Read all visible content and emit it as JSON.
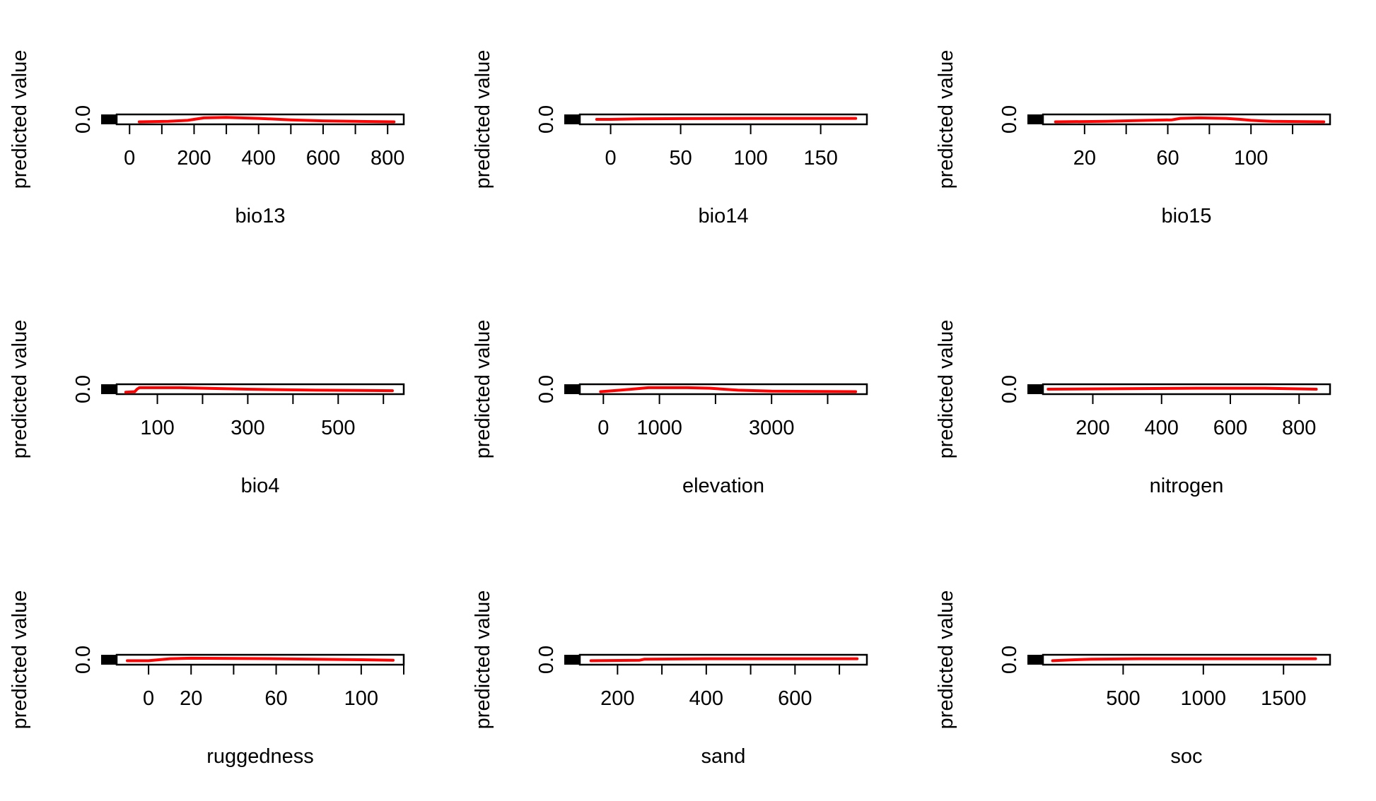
{
  "chart_data": [
    {
      "type": "line",
      "xlabel": "bio13",
      "ylabel": "predicted value",
      "ytick_label": "0.0",
      "xlim": [
        -40,
        850
      ],
      "ylim": [
        -0.1,
        0.1
      ],
      "xticks": [
        0,
        100,
        200,
        300,
        400,
        500,
        600,
        700,
        800
      ],
      "xtick_labels": [
        "0",
        "200",
        "400",
        "600",
        "800"
      ],
      "series": [
        {
          "color": "#ff0000",
          "x": [
            30,
            120,
            180,
            230,
            300,
            400,
            500,
            600,
            700,
            820
          ],
          "y": [
            -0.05,
            -0.04,
            -0.02,
            0.03,
            0.04,
            0.02,
            -0.01,
            -0.03,
            -0.04,
            -0.05
          ]
        }
      ]
    },
    {
      "type": "line",
      "xlabel": "bio14",
      "ylabel": "predicted value",
      "ytick_label": "0.0",
      "xlim": [
        -22,
        183
      ],
      "ylim": [
        -0.1,
        0.1
      ],
      "xticks": [
        0,
        50,
        100,
        150
      ],
      "xtick_labels": [
        "0",
        "50",
        "100",
        "150"
      ],
      "series": [
        {
          "color": "#ff0000",
          "x": [
            -10,
            0,
            20,
            50,
            100,
            150,
            175
          ],
          "y": [
            0.0,
            0.0,
            0.01,
            0.015,
            0.02,
            0.02,
            0.02
          ]
        }
      ]
    },
    {
      "type": "line",
      "xlabel": "bio15",
      "ylabel": "predicted value",
      "ytick_label": "0.0",
      "xlim": [
        0,
        138
      ],
      "ylim": [
        -0.1,
        0.1
      ],
      "xticks": [
        20,
        40,
        60,
        80,
        100,
        120
      ],
      "xtick_labels": [
        "20",
        "60",
        "100"
      ],
      "series": [
        {
          "color": "#ff0000",
          "x": [
            6,
            30,
            50,
            62,
            66,
            75,
            88,
            95,
            100,
            110,
            135
          ],
          "y": [
            -0.05,
            -0.04,
            -0.02,
            -0.01,
            0.02,
            0.03,
            0.02,
            0.0,
            -0.02,
            -0.04,
            -0.05
          ]
        }
      ]
    },
    {
      "type": "line",
      "xlabel": "bio4",
      "ylabel": "predicted value",
      "ytick_label": "0.0",
      "xlim": [
        10,
        645
      ],
      "ylim": [
        -0.1,
        0.1
      ],
      "xticks": [
        100,
        200,
        300,
        400,
        500,
        600
      ],
      "xtick_labels": [
        "100",
        "300",
        "500"
      ],
      "series": [
        {
          "color": "#ff0000",
          "x": [
            30,
            50,
            55,
            60,
            150,
            300,
            450,
            620
          ],
          "y": [
            -0.06,
            -0.05,
            0.0,
            0.03,
            0.03,
            0.0,
            -0.02,
            -0.03
          ]
        }
      ]
    },
    {
      "type": "line",
      "xlabel": "elevation",
      "ylabel": "predicted value",
      "ytick_label": "0.0",
      "xlim": [
        -420,
        4700
      ],
      "ylim": [
        -0.1,
        0.1
      ],
      "xticks": [
        0,
        1000,
        2000,
        3000,
        4000
      ],
      "xtick_labels": [
        "0",
        "1000",
        "3000"
      ],
      "series": [
        {
          "color": "#ff0000",
          "x": [
            -50,
            300,
            800,
            1500,
            1900,
            2400,
            3000,
            4500
          ],
          "y": [
            -0.05,
            -0.02,
            0.03,
            0.03,
            0.02,
            -0.02,
            -0.04,
            -0.05
          ]
        }
      ]
    },
    {
      "type": "line",
      "xlabel": "nitrogen",
      "ylabel": "predicted value",
      "ytick_label": "0.0",
      "xlim": [
        55,
        890
      ],
      "ylim": [
        -0.1,
        0.1
      ],
      "xticks": [
        200,
        400,
        600,
        800
      ],
      "xtick_labels": [
        "200",
        "400",
        "600",
        "800"
      ],
      "series": [
        {
          "color": "#ff0000",
          "x": [
            70,
            300,
            500,
            700,
            850
          ],
          "y": [
            0.0,
            0.01,
            0.02,
            0.02,
            0.0
          ]
        }
      ]
    },
    {
      "type": "line",
      "xlabel": "ruggedness",
      "ylabel": "predicted value",
      "ytick_label": "0.0",
      "xlim": [
        -15,
        120
      ],
      "ylim": [
        -0.1,
        0.1
      ],
      "xticks": [
        0,
        20,
        40,
        60,
        80,
        100,
        120
      ],
      "xtick_labels": [
        "0",
        "20",
        "60",
        "100"
      ],
      "series": [
        {
          "color": "#ff0000",
          "x": [
            -10,
            0,
            10,
            20,
            60,
            100,
            115
          ],
          "y": [
            -0.02,
            -0.02,
            0.02,
            0.03,
            0.02,
            0.0,
            -0.01
          ]
        }
      ]
    },
    {
      "type": "line",
      "xlabel": "sand",
      "ylabel": "predicted value",
      "ytick_label": "0.0",
      "xlim": [
        115,
        762
      ],
      "ylim": [
        -0.1,
        0.1
      ],
      "xticks": [
        200,
        300,
        400,
        500,
        600,
        700
      ],
      "xtick_labels": [
        "200",
        "400",
        "600"
      ],
      "series": [
        {
          "color": "#ff0000",
          "x": [
            140,
            250,
            260,
            400,
            600,
            740
          ],
          "y": [
            -0.02,
            -0.01,
            0.01,
            0.02,
            0.02,
            0.02
          ]
        }
      ]
    },
    {
      "type": "line",
      "xlabel": "soc",
      "ylabel": "predicted value",
      "ytick_label": "0.0",
      "xlim": [
        0,
        1790
      ],
      "ylim": [
        -0.1,
        0.1
      ],
      "xticks": [
        500,
        1000,
        1500
      ],
      "xtick_labels": [
        "500",
        "1000",
        "1500"
      ],
      "series": [
        {
          "color": "#ff0000",
          "x": [
            60,
            200,
            300,
            600,
            1000,
            1500,
            1700
          ],
          "y": [
            -0.02,
            0.0,
            0.01,
            0.02,
            0.02,
            0.02,
            0.02
          ]
        }
      ]
    }
  ]
}
